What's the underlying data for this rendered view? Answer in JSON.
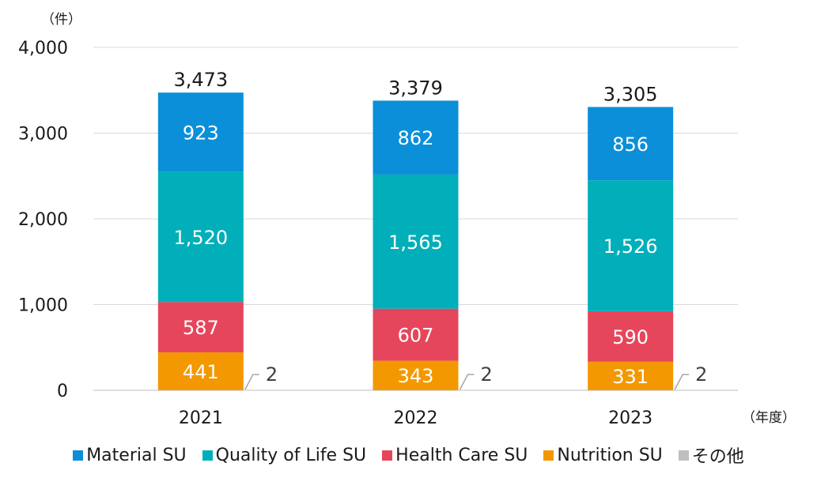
{
  "chart_data": {
    "type": "bar",
    "stacked": true,
    "title": "",
    "unit_label": "（件）",
    "x_unit_label": "（年度）",
    "categories": [
      "2021",
      "2022",
      "2023"
    ],
    "totals": [
      "3,473",
      "3,379",
      "3,305"
    ],
    "ylim": [
      0,
      4000
    ],
    "yticks": [
      "0",
      "1,000",
      "2,000",
      "3,000",
      "4,000"
    ],
    "ytick_values": [
      0,
      1000,
      2000,
      3000,
      4000
    ],
    "grid": true,
    "legend_position": "bottom",
    "series": [
      {
        "name": "その他",
        "color": "#bfbfbf",
        "values": [
          2,
          2,
          2
        ],
        "labels": [
          "2",
          "2",
          "2"
        ],
        "label_outside": true
      },
      {
        "name": "Nutrition SU",
        "color": "#f39800",
        "values": [
          441,
          343,
          331
        ],
        "labels": [
          "441",
          "343",
          "331"
        ]
      },
      {
        "name": "Health Care SU",
        "color": "#e6465b",
        "values": [
          587,
          607,
          590
        ],
        "labels": [
          "587",
          "607",
          "590"
        ]
      },
      {
        "name": "Quality of Life SU",
        "color": "#00afb9",
        "values": [
          1520,
          1565,
          1526
        ],
        "labels": [
          "1,520",
          "1,565",
          "1,526"
        ]
      },
      {
        "name": "Material SU",
        "color": "#0b8fd8",
        "values": [
          923,
          862,
          856
        ],
        "labels": [
          "923",
          "862",
          "856"
        ]
      }
    ],
    "legend_order": [
      "Material SU",
      "Quality of Life SU",
      "Health Care SU",
      "Nutrition SU",
      "その他"
    ]
  }
}
